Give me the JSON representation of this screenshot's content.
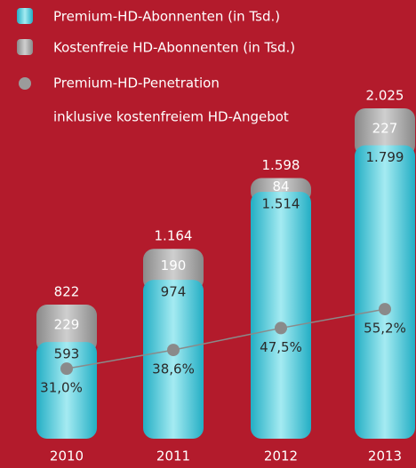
{
  "chart_data": {
    "type": "stacked_bar_line",
    "categories": [
      "2010",
      "2011",
      "2012",
      "2013"
    ],
    "series": [
      {
        "name": "Premium-HD-Abonnenten (in Tsd.)",
        "color": "#3ec3d6",
        "values": [
          593,
          974,
          1514,
          1799
        ],
        "value_labels": [
          "593",
          "974",
          "1.514",
          "1.799"
        ]
      },
      {
        "name": "Kostenfreie HD-Abonnenten (in Tsd.)",
        "color": "#9b9b9b",
        "values": [
          229,
          190,
          84,
          227
        ]
      },
      {
        "name": "Premium-HD-Penetration",
        "color": "#8a8a8a",
        "axis": "y2",
        "values": [
          31.0,
          38.6,
          47.5,
          55.2
        ],
        "value_labels": [
          "31,0%",
          "38,6%",
          "47,5%",
          "55,2%"
        ]
      }
    ],
    "penetration_note": "inklusive kostenfreiem HD-Angebot",
    "totals": {
      "values": [
        822,
        1164,
        1598,
        2025
      ],
      "value_labels": [
        "822",
        "1.164",
        "1.598",
        "2.025"
      ]
    },
    "ylim": [
      0,
      2200
    ],
    "y2lim": [
      0,
      100
    ]
  }
}
